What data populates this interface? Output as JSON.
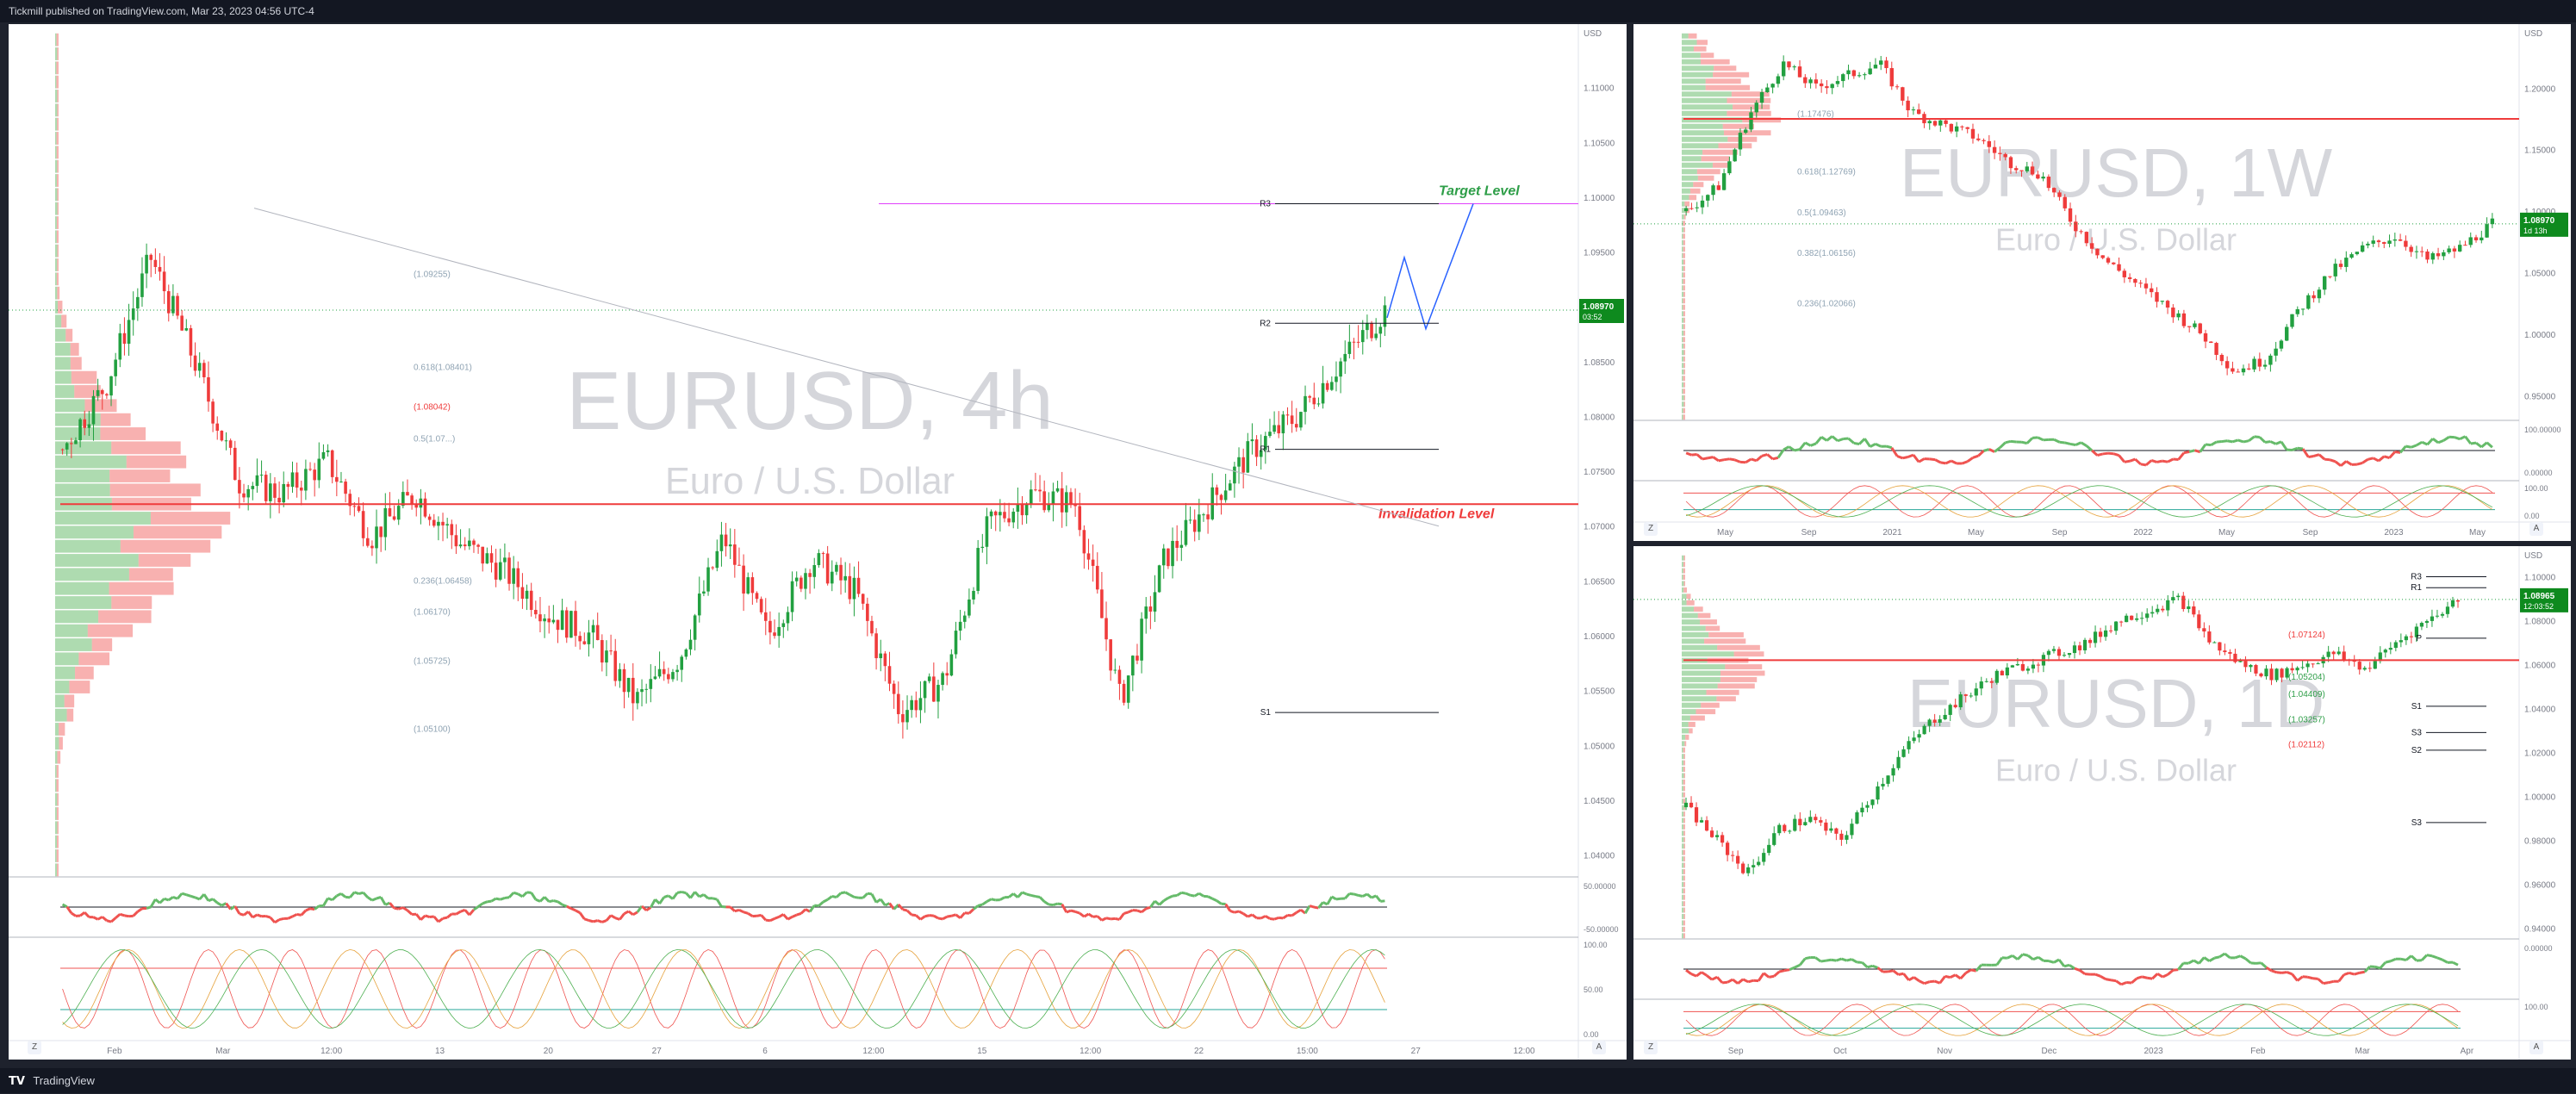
{
  "header": {
    "publisher_line": "Tickmill published on TradingView.com, Mar 23, 2023 04:56 UTC-4"
  },
  "footer": {
    "brand": "TradingView",
    "logo_icon": "tradingview-logo-icon"
  },
  "colors": {
    "bull": "#22a040",
    "bear": "#ef3b3b",
    "target": "#2e9e48",
    "invalidation": "#ef3b3b",
    "projection": "#2962ff",
    "price_tag": "#0e8a1e"
  },
  "charts": [
    {
      "id": "main-4h",
      "watermark_symbol": "EURUSD, 4h",
      "watermark_name": "Euro / U.S. Dollar",
      "currency": "USD",
      "current_price": "1.08970",
      "countdown": "03:52",
      "y_axis_ticks": [
        "1.11000",
        "1.10500",
        "1.10000",
        "1.09500",
        "1.09000",
        "1.08500",
        "1.08000",
        "1.07500",
        "1.07000",
        "1.06500",
        "1.06000",
        "1.05500",
        "1.05000",
        "1.04500",
        "1.04000"
      ],
      "x_axis_ticks": [
        "Feb",
        "Mar",
        "12:00",
        "13",
        "20",
        "27",
        "6",
        "12:00",
        "15",
        "12:00",
        "22",
        "15:00",
        "27",
        "12:00"
      ],
      "annotations": {
        "target_level": "Target Level",
        "invalidation_level": "Invalidation Level",
        "pivots": [
          "R3",
          "R2",
          "R1",
          "S1"
        ],
        "fib_labels": [
          "(1.09255)",
          "0.618(1.08401)",
          "(1.08042)",
          "0.5(1.07...)",
          "0.236(1.06458)",
          "(1.06170)",
          "(1.05725)",
          "(1.05100)"
        ]
      },
      "indicator_ticks_rsi": [
        "50.00000",
        "-50.00000"
      ],
      "indicator_ticks_stoch": [
        "100.00",
        "50.00",
        "0.00"
      ]
    },
    {
      "id": "weekly-1w",
      "watermark_symbol": "EURUSD, 1W",
      "watermark_name": "Euro / U.S. Dollar",
      "currency": "USD",
      "current_price": "1.08970",
      "countdown": "1d 13h",
      "y_axis_ticks": [
        "1.20000",
        "1.15000",
        "1.10000",
        "1.05000",
        "1.00000",
        "0.95000"
      ],
      "x_axis_ticks": [
        "May",
        "Sep",
        "2021",
        "May",
        "Sep",
        "2022",
        "May",
        "Sep",
        "2023",
        "May"
      ],
      "annotations": {
        "fib_labels": [
          "(1.17476)",
          "0.618(1.12769)",
          "0.5(1.09463)",
          "0.382(1.06156)",
          "0.236(1.02066)"
        ]
      },
      "indicator_ticks_rsi": [
        "100.00000",
        "0.00000"
      ],
      "indicator_ticks_stoch": [
        "100.00",
        "0.00"
      ]
    },
    {
      "id": "daily-1d",
      "watermark_symbol": "EURUSD, 1D",
      "watermark_name": "Euro / U.S. Dollar",
      "currency": "USD",
      "current_price": "1.08965",
      "countdown": "12:03:52",
      "y_axis_ticks": [
        "1.10000",
        "1.08000",
        "1.06000",
        "1.04000",
        "1.02000",
        "1.00000",
        "0.98000",
        "0.96000",
        "0.94000"
      ],
      "x_axis_ticks": [
        "Sep",
        "Oct",
        "Nov",
        "Dec",
        "2023",
        "Feb",
        "Mar",
        "Apr"
      ],
      "annotations": {
        "pivots": [
          "R3",
          "R1",
          "P",
          "S1",
          "S2",
          "S3",
          "S3"
        ],
        "fib_labels": [
          "(1.07124)",
          "(1.05204)",
          "(1.04409)",
          "(1.03257)",
          "(1.02112)"
        ]
      },
      "indicator_ticks_rsi": [
        "0.00000"
      ],
      "indicator_ticks_stoch": [
        "100.00"
      ]
    }
  ],
  "chart_data": [
    {
      "type": "candlestick",
      "title": "EURUSD, 4h",
      "subtitle": "Euro / U.S. Dollar",
      "ylim": [
        1.038,
        1.115
      ],
      "last": 1.0897,
      "target": 1.0994,
      "invalidation": 1.072,
      "path": [
        1.077,
        1.083,
        1.0945,
        1.085,
        1.074,
        1.073,
        1.076,
        1.069,
        1.073,
        1.0685,
        1.066,
        1.062,
        1.06,
        1.054,
        1.058,
        1.069,
        1.06,
        1.067,
        1.064,
        1.053,
        1.056,
        1.07,
        1.073,
        1.072,
        1.054,
        1.067,
        1.072,
        1.077,
        1.08,
        1.085,
        1.0897
      ]
    },
    {
      "type": "candlestick",
      "title": "EURUSD, 1W",
      "subtitle": "Euro / U.S. Dollar",
      "ylim": [
        0.93,
        1.245
      ],
      "last": 1.0897,
      "path": [
        1.1,
        1.12,
        1.18,
        1.22,
        1.2,
        1.21,
        1.22,
        1.18,
        1.17,
        1.16,
        1.14,
        1.13,
        1.09,
        1.06,
        1.04,
        1.02,
        1.0,
        0.97,
        0.98,
        1.02,
        1.05,
        1.07,
        1.08,
        1.06,
        1.07,
        1.0897
      ]
    },
    {
      "type": "candlestick",
      "title": "EURUSD, 1D",
      "subtitle": "Euro / U.S. Dollar",
      "ylim": [
        0.935,
        1.11
      ],
      "last": 1.08965,
      "path": [
        0.995,
        0.98,
        0.965,
        0.985,
        0.99,
        0.98,
        1.0,
        1.02,
        1.035,
        1.045,
        1.055,
        1.06,
        1.065,
        1.07,
        1.08,
        1.085,
        1.09,
        1.07,
        1.06,
        1.055,
        1.06,
        1.065,
        1.058,
        1.07,
        1.08,
        1.08965
      ]
    }
  ]
}
